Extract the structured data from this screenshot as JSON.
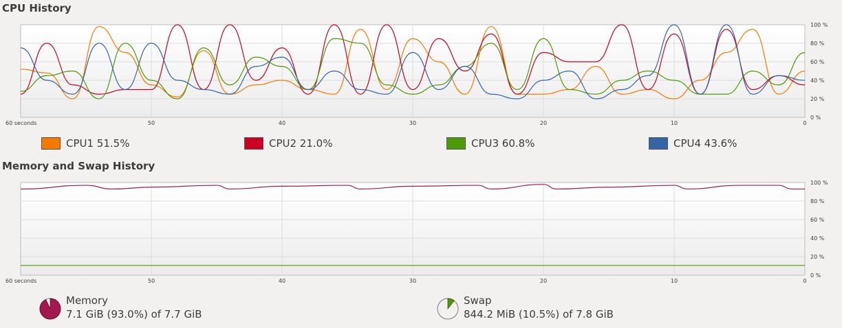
{
  "cpu": {
    "title": "CPU History",
    "y_ticks": [
      "100 %",
      "80 %",
      "60 %",
      "40 %",
      "20 %",
      "0 %"
    ],
    "x_ticks": [
      "60 seconds",
      "50",
      "40",
      "30",
      "20",
      "10",
      "0"
    ],
    "legend": [
      {
        "label": "CPU1 51.5%",
        "color": "#f57900"
      },
      {
        "label": "CPU2 21.0%",
        "color": "#cc0022"
      },
      {
        "label": "CPU3 60.8%",
        "color": "#4e9a06"
      },
      {
        "label": "CPU4 43.6%",
        "color": "#3465a4"
      }
    ]
  },
  "memory": {
    "title": "Memory and Swap History",
    "y_ticks": [
      "100 %",
      "80 %",
      "60 %",
      "40 %",
      "20 %",
      "0 %"
    ],
    "x_ticks": [
      "60 seconds",
      "50",
      "40",
      "30",
      "20",
      "10",
      "0"
    ],
    "memory_label": "Memory",
    "memory_value": "7.1 GiB (93.0%) of 7.7 GiB",
    "memory_color": "#a3194f",
    "memory_fraction": 0.93,
    "swap_label": "Swap",
    "swap_value": "844.2 MiB (10.5%) of 7.8 GiB",
    "swap_color": "#4e9a06",
    "swap_fraction": 0.105
  },
  "chart_data": [
    {
      "type": "line",
      "title": "CPU History",
      "xlabel": "",
      "ylabel": "",
      "x": [
        60,
        58,
        56,
        54,
        52,
        50,
        48,
        46,
        44,
        42,
        40,
        38,
        36,
        34,
        32,
        30,
        28,
        26,
        24,
        22,
        20,
        18,
        16,
        14,
        12,
        10,
        8,
        6,
        4,
        2,
        0
      ],
      "xlim": [
        60,
        0
      ],
      "ylim": [
        0,
        100
      ],
      "y_unit": "%",
      "grid": true,
      "series": [
        {
          "name": "CPU1",
          "values": [
            52,
            48,
            20,
            98,
            70,
            35,
            22,
            72,
            25,
            35,
            40,
            30,
            25,
            95,
            30,
            85,
            60,
            25,
            98,
            25,
            25,
            30,
            55,
            25,
            30,
            20,
            40,
            70,
            95,
            25,
            50
          ]
        },
        {
          "name": "CPU2",
          "values": [
            25,
            80,
            35,
            25,
            30,
            30,
            100,
            30,
            100,
            40,
            75,
            25,
            100,
            25,
            100,
            30,
            85,
            50,
            90,
            25,
            70,
            60,
            60,
            100,
            30,
            90,
            25,
            95,
            30,
            45,
            35
          ]
        },
        {
          "name": "CPU3",
          "values": [
            28,
            45,
            50,
            20,
            80,
            40,
            20,
            75,
            35,
            65,
            55,
            30,
            85,
            80,
            35,
            25,
            35,
            55,
            80,
            30,
            85,
            30,
            25,
            40,
            50,
            40,
            25,
            25,
            50,
            35,
            70
          ]
        },
        {
          "name": "CPU4",
          "values": [
            75,
            40,
            25,
            80,
            30,
            80,
            40,
            30,
            25,
            55,
            65,
            30,
            50,
            30,
            25,
            70,
            30,
            55,
            25,
            20,
            40,
            50,
            20,
            30,
            45,
            100,
            25,
            100,
            25,
            45,
            40
          ]
        }
      ]
    },
    {
      "type": "line",
      "title": "Memory and Swap History",
      "xlabel": "",
      "ylabel": "",
      "x": [
        60,
        55,
        53,
        50,
        45,
        44,
        40,
        35,
        34,
        30,
        25,
        24,
        20,
        19,
        15,
        10,
        9,
        5,
        2,
        1,
        0
      ],
      "xlim": [
        60,
        0
      ],
      "ylim": [
        0,
        100
      ],
      "y_unit": "%",
      "grid": true,
      "series": [
        {
          "name": "Memory",
          "values": [
            93,
            97,
            93,
            95,
            97,
            93,
            96,
            97,
            93,
            96,
            97,
            93,
            98,
            93,
            95,
            97,
            93,
            97,
            97,
            93,
            93
          ]
        },
        {
          "name": "Swap",
          "values": [
            10.5,
            10.5,
            10.5,
            10.5,
            10.5,
            10.5,
            10.5,
            10.5,
            10.5,
            10.5,
            10.5,
            10.5,
            10.5,
            10.5,
            10.5,
            10.5,
            10.5,
            10.5,
            10.5,
            10.5,
            10.5
          ]
        }
      ]
    }
  ]
}
